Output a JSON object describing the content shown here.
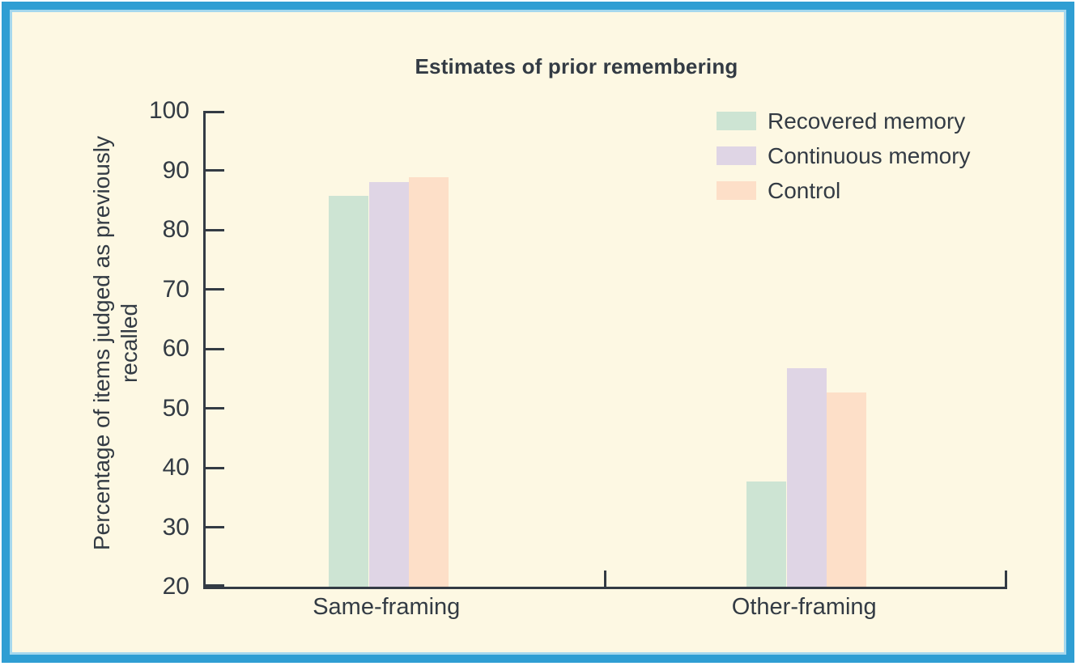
{
  "figure": {
    "frame_border_color": "#2f9ed3",
    "frame_inner_edge_color": "#a5d8ee",
    "background_color": "#fdf8e3",
    "outer_background_color": "#ffffff",
    "axis_color": "#333b44",
    "text_color": "#333b44"
  },
  "chart_data": {
    "type": "bar",
    "title": "Estimates of prior remembering",
    "ylabel": "Percentage of items judged as previously recalled",
    "ylabel_lines": [
      "Percentage of items judged as previously",
      "recalled"
    ],
    "xlabel": "",
    "categories": [
      "Same-framing",
      "Other-framing"
    ],
    "series": [
      {
        "name": "Recovered memory",
        "color": "#cde4d3",
        "values": [
          85.7,
          37.7
        ]
      },
      {
        "name": "Continuous memory",
        "color": "#dfd5e5",
        "values": [
          88.0,
          56.7
        ]
      },
      {
        "name": "Control",
        "color": "#fddfc8",
        "values": [
          88.8,
          52.7
        ]
      }
    ],
    "ylim": [
      20,
      100
    ],
    "y_ticks": [
      100,
      90,
      80,
      70,
      60,
      50,
      40,
      30,
      20
    ],
    "grid": false,
    "legend_position": "top-right"
  }
}
